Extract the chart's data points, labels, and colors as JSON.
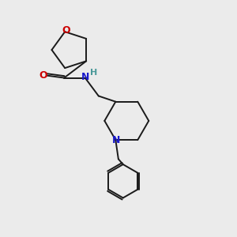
{
  "background_color": "#ebebeb",
  "bond_color": "#1a1a1a",
  "o_color": "#cc0000",
  "n_color": "#1a1acc",
  "h_color": "#4a9999",
  "bond_width": 1.4,
  "dbo": 0.008,
  "figsize": [
    3.0,
    3.0
  ],
  "dpi": 100,
  "xlim": [
    0,
    1
  ],
  "ylim": [
    0,
    1
  ]
}
